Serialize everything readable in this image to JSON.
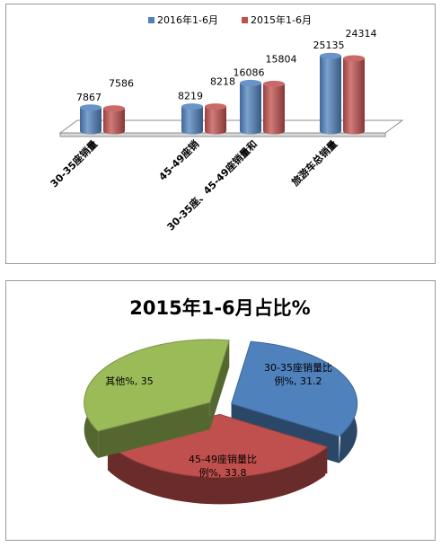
{
  "chart_data": [
    {
      "type": "bar",
      "categories": [
        "30-35座销量",
        "45-49座销",
        "30-35座、45-49座销量和",
        "旅游车总销量"
      ],
      "series": [
        {
          "name": "2016年1-6月",
          "values": [
            7867,
            8219,
            16086,
            25135
          ],
          "color": "#4f81bd"
        },
        {
          "name": "2015年1-6月",
          "values": [
            7586,
            8218,
            15804,
            24314
          ],
          "color": "#c0504d"
        }
      ],
      "ylim": [
        0,
        30000
      ],
      "grid": false,
      "legend": "top-center",
      "three_d": true
    },
    {
      "type": "pie",
      "title": "2015年1-6月占比%",
      "slices": [
        {
          "label": "30-35座销量比例%, 31.2",
          "line1": "30-35座销量比",
          "line2": "例%, 31.2",
          "value": 31.2,
          "color": "#4f81bd"
        },
        {
          "label": "45-49座销量比例%, 33.8",
          "line1": "45-49座销量比",
          "line2": "例%, 33.8",
          "value": 33.8,
          "color": "#c0504d"
        },
        {
          "label": "其他%, 35",
          "line1": "其他%, 35",
          "line2": "",
          "value": 35,
          "color": "#9bbb59"
        }
      ],
      "three_d": true,
      "exploded": true
    }
  ]
}
